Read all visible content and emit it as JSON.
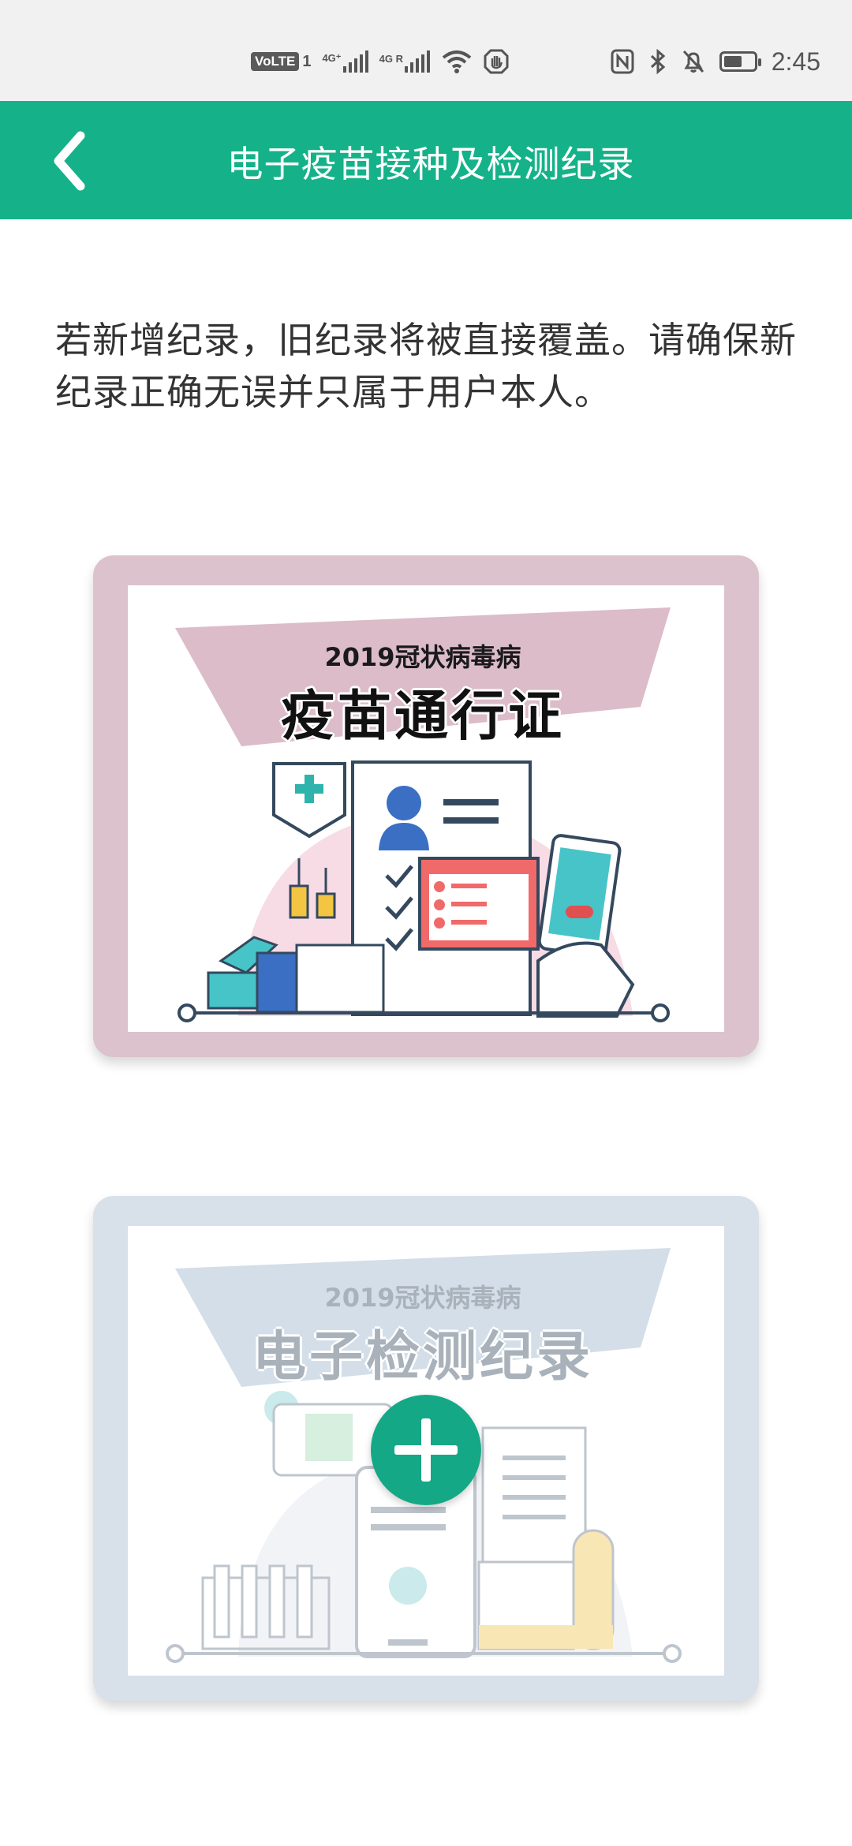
{
  "status_bar": {
    "volte": "VoLTE",
    "sim1_indicator": "1",
    "network_1": "4G⁺",
    "network_2": "4G R",
    "time": "2:45",
    "battery_level": 0.6,
    "icons": [
      "volte-icon",
      "signal-icon",
      "signal-icon",
      "wifi-icon",
      "hand-icon",
      "nfc-icon",
      "bluetooth-icon",
      "mute-icon",
      "battery-icon"
    ]
  },
  "app_bar": {
    "title": "电子疫苗接种及检测纪录",
    "back_icon": "chevron-left-icon",
    "background": "#15b28a"
  },
  "notice": {
    "text": "若新增纪录，旧纪录将被直接覆盖。请确保新纪录正确无误并只属于用户本人。"
  },
  "cards": {
    "vaccine": {
      "subtitle": "2019冠状病毒病",
      "title": "疫苗通行证",
      "frame_color": "#dbc2cd"
    },
    "test": {
      "subtitle": "2019冠状病毒病",
      "title": "电子检测纪录",
      "frame_color": "#d8e0ea",
      "add_icon": "plus-icon"
    }
  }
}
